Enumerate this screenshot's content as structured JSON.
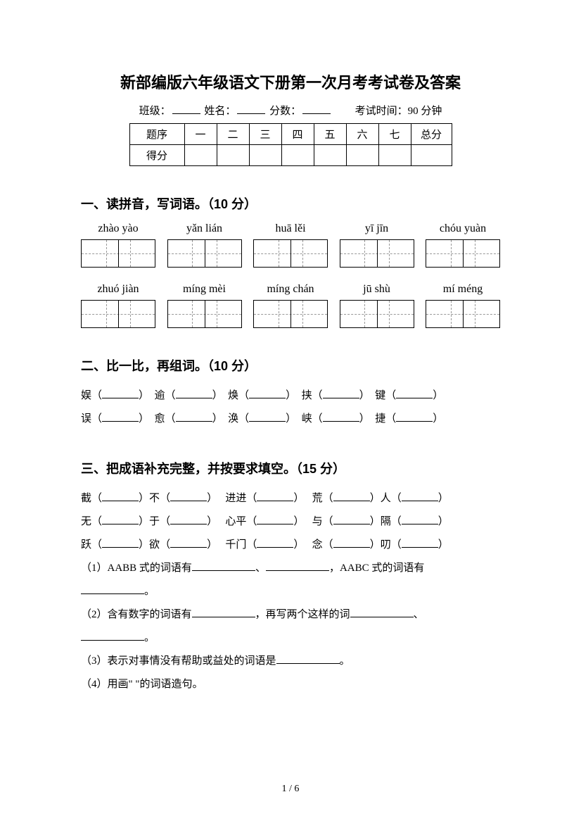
{
  "title": "新部编版六年级语文下册第一次月考考试卷及答案",
  "info": {
    "class_label": "班级：",
    "name_label": "姓名：",
    "score_label": "分数：",
    "time_label": "考试时间：90 分钟"
  },
  "score_table": {
    "row1": [
      "题序",
      "一",
      "二",
      "三",
      "四",
      "五",
      "六",
      "七",
      "总分"
    ],
    "row2_label": "得分"
  },
  "section1": {
    "heading": "一、读拼音，写词语。（10 分）",
    "pinyin_row1": [
      "zhào yào",
      "yǎn lián",
      "huā lěi",
      "yī jīn",
      "chóu yuàn"
    ],
    "pinyin_row2": [
      "zhuó jiàn",
      "míng mèi",
      "míng chán",
      "jū shù",
      "mí méng"
    ]
  },
  "section2": {
    "heading": "二、比一比，再组词。（10 分）",
    "pairs_row1": [
      "娱",
      "逾",
      "焕",
      "挟",
      "键"
    ],
    "pairs_row2": [
      "误",
      "愈",
      "涣",
      "峡",
      "捷"
    ]
  },
  "section3": {
    "heading": "三、把成语补充完整，并按要求填空。（15 分）",
    "idioms": [
      [
        "截",
        "不",
        "进进",
        "荒",
        "人"
      ],
      [
        "无",
        "于",
        "心平",
        "与",
        "隔"
      ],
      [
        "跃",
        "欲",
        "千门",
        "念",
        "叨"
      ]
    ],
    "q1": "（1）AABB 式的词语有",
    "q1_mid": "、",
    "q1_end": "，AABC 式的词语有",
    "q2": "（2）含有数字的词语有",
    "q2_mid": "，再写两个这样的词",
    "q2_sep": "、",
    "q3": "（3）表示对事情没有帮助或益处的词语是",
    "q4": "（4）用画\"  \"的词语造句。",
    "period": "。"
  },
  "page_num": "1 / 6"
}
